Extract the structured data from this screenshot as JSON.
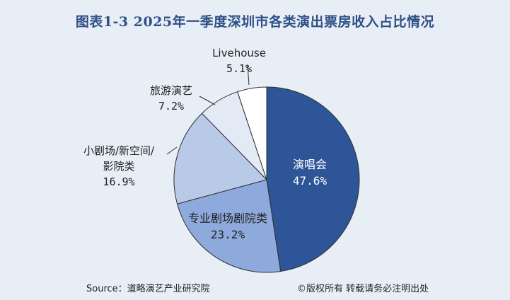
{
  "chart_data": {
    "type": "pie",
    "title": "图表1-3  2025年一季度深圳市各类演出票房收入占比情况",
    "slices": [
      {
        "label_lines": [
          "演唱会"
        ],
        "value": 47.6,
        "value_label": "47.6%",
        "color": "#2e5597"
      },
      {
        "label_lines": [
          "专业剧场剧院类"
        ],
        "value": 23.2,
        "value_label": "23.2%",
        "color": "#8eaadc"
      },
      {
        "label_lines": [
          "小剧场/新空间/",
          "影院类"
        ],
        "value": 16.9,
        "value_label": "16.9%",
        "color": "#b8cae7"
      },
      {
        "label_lines": [
          "旅游演艺"
        ],
        "value": 7.2,
        "value_label": "7.2%",
        "color": "#e3eaf5"
      },
      {
        "label_lines": [
          "Livehouse"
        ],
        "value": 5.1,
        "value_label": "5.1%",
        "color": "#ffffff"
      }
    ]
  },
  "footer": {
    "source": "Source：道略演艺产业研究院",
    "copyright": "©版权所有  转载请务必注明出处"
  }
}
